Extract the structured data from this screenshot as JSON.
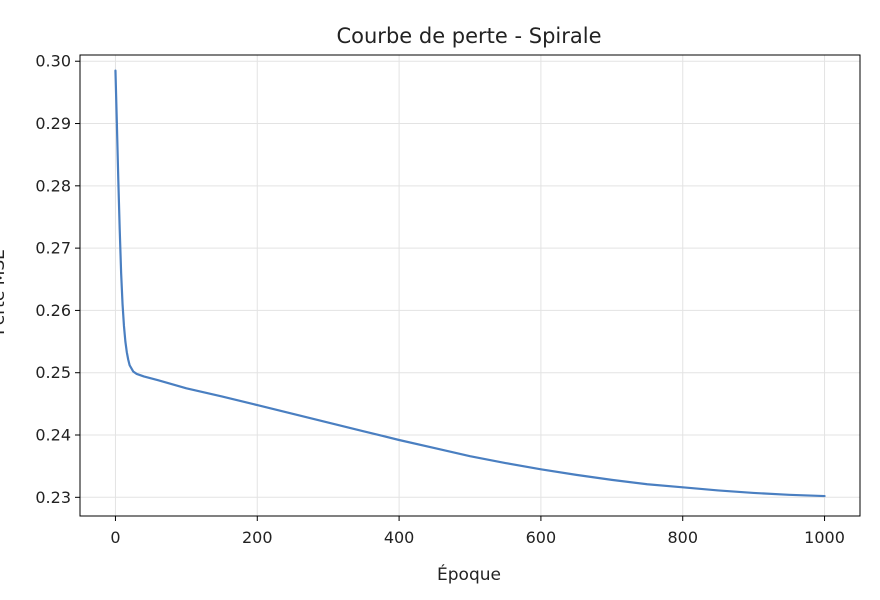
{
  "chart_data": {
    "type": "line",
    "title": "Courbe de perte - Spirale",
    "xlabel": "Époque",
    "ylabel": "Perte MSE",
    "xlim": [
      -50,
      1050
    ],
    "ylim": [
      0.227,
      0.301
    ],
    "xticks": [
      0,
      200,
      400,
      600,
      800,
      1000
    ],
    "xtick_labels": [
      "0",
      "200",
      "400",
      "600",
      "800",
      "1000"
    ],
    "yticks": [
      0.23,
      0.24,
      0.25,
      0.26,
      0.27,
      0.28,
      0.29,
      0.3
    ],
    "ytick_labels": [
      "0.23",
      "0.24",
      "0.25",
      "0.26",
      "0.27",
      "0.28",
      "0.29",
      "0.30"
    ],
    "grid": true,
    "line_color": "#4a7fc1",
    "series": [
      {
        "x": [
          0,
          2,
          4,
          6,
          8,
          10,
          12,
          14,
          16,
          18,
          20,
          25,
          30,
          40,
          60,
          100,
          150,
          200,
          250,
          300,
          350,
          400,
          450,
          500,
          550,
          600,
          650,
          700,
          750,
          800,
          850,
          900,
          950,
          1000
        ],
        "values": [
          0.2985,
          0.29,
          0.281,
          0.273,
          0.266,
          0.261,
          0.2575,
          0.255,
          0.2533,
          0.2521,
          0.2512,
          0.2502,
          0.2498,
          0.2494,
          0.2488,
          0.2475,
          0.2462,
          0.2448,
          0.2434,
          0.242,
          0.2406,
          0.2392,
          0.2379,
          0.2366,
          0.2355,
          0.2345,
          0.2336,
          0.2328,
          0.2321,
          0.2316,
          0.2311,
          0.2307,
          0.2304,
          0.2302
        ]
      }
    ]
  }
}
